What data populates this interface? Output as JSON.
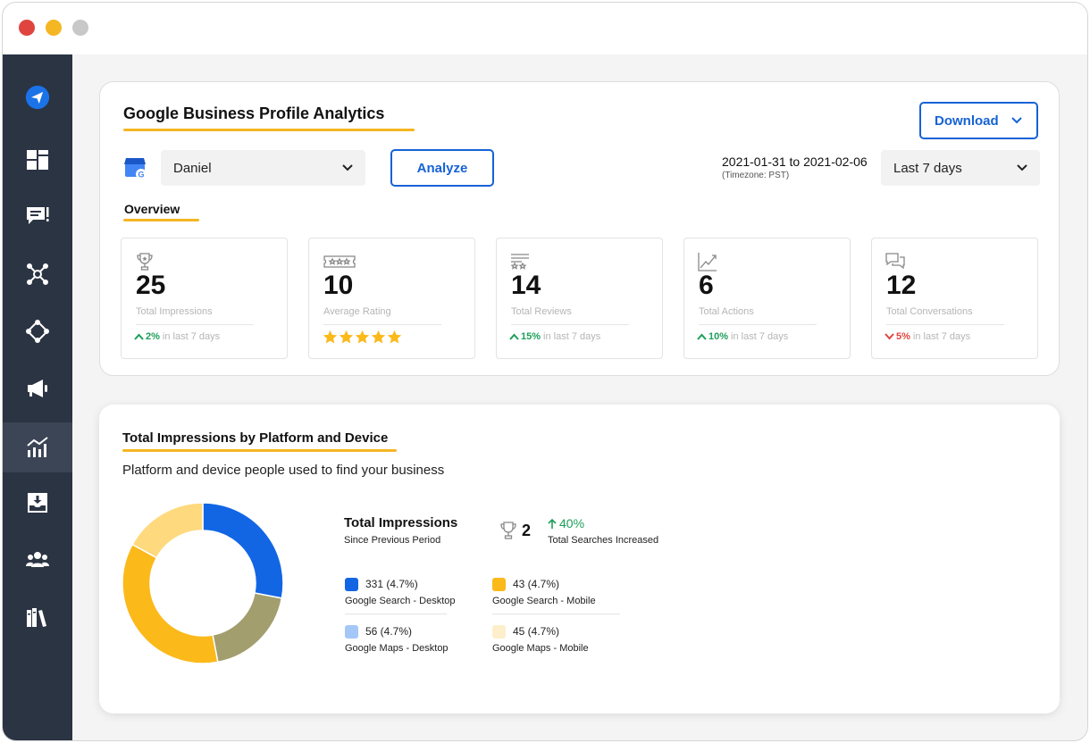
{
  "colors": {
    "sidebar_bg": "#2b3443",
    "accent_blue": "#1662d6",
    "accent_yellow": "#f5b623",
    "positive": "#1d9e5a",
    "negative": "#e0443e"
  },
  "sidebar": {
    "items": [
      {
        "icon": "paper-plane-icon",
        "active": false
      },
      {
        "icon": "dashboard-grid-icon",
        "active": false
      },
      {
        "icon": "review-chat-icon",
        "active": false
      },
      {
        "icon": "network-hub-icon",
        "active": false
      },
      {
        "icon": "integrations-icon",
        "active": false
      },
      {
        "icon": "megaphone-icon",
        "active": false
      },
      {
        "icon": "analytics-chart-icon",
        "active": true
      },
      {
        "icon": "inbox-download-icon",
        "active": false
      },
      {
        "icon": "users-group-icon",
        "active": false
      },
      {
        "icon": "library-books-icon",
        "active": false
      }
    ]
  },
  "header": {
    "title": "Google Business Profile Analytics",
    "download_label": "Download",
    "location_select": "Daniel",
    "analyze_label": "Analyze",
    "date_range": "2021-01-31 to 2021-02-06",
    "timezone": "(Timezone: PST)",
    "period_select": "Last 7 days"
  },
  "overview": {
    "title": "Overview",
    "stats": [
      {
        "icon": "trophy-icon",
        "value": "25",
        "label": "Total Impressions",
        "trend_dir": "up",
        "trend_pct": "2%",
        "trend_text": "in last 7 days"
      },
      {
        "icon": "rating-stars-icon",
        "value": "10",
        "label": "Average Rating",
        "rating": 5
      },
      {
        "icon": "reviews-icon",
        "value": "14",
        "label": "Total Reviews",
        "trend_dir": "up",
        "trend_pct": "15%",
        "trend_text": "in last 7 days"
      },
      {
        "icon": "line-chart-icon",
        "value": "6",
        "label": "Total Actions",
        "trend_dir": "up",
        "trend_pct": "10%",
        "trend_text": "in last 7 days"
      },
      {
        "icon": "conversations-icon",
        "value": "12",
        "label": "Total Conversations",
        "trend_dir": "down",
        "trend_pct": "5%",
        "trend_text": "in last 7 days"
      }
    ]
  },
  "impressions": {
    "title": "Total Impressions by Platform and Device",
    "subtitle": "Platform and device people used to find your business",
    "summary_title": "Total Impressions",
    "summary_sub": "Since Previous Period",
    "count": "2",
    "increase": "40%",
    "increase_label": "Total Searches Increased",
    "legend": [
      {
        "value": "331 (4.7%)",
        "name": "Google Search - Desktop",
        "color": "#1266e4"
      },
      {
        "value": "43 (4.7%)",
        "name": "Google Search - Mobile",
        "color": "#fbb91a"
      },
      {
        "value": "56 (4.7%)",
        "name": "Google Maps - Desktop",
        "color": "#a5c7f7"
      },
      {
        "value": "45 (4.7%)",
        "name": "Google Maps - Mobile",
        "color": "#fdefcb"
      }
    ]
  },
  "chart_data": {
    "type": "pie",
    "donut": true,
    "series": [
      {
        "value": 28,
        "color": "#1266e4"
      },
      {
        "value": 19,
        "color": "#a39e6e"
      },
      {
        "value": 36,
        "color": "#fbb91a"
      },
      {
        "value": 17,
        "color": "#ffd97e"
      }
    ]
  }
}
